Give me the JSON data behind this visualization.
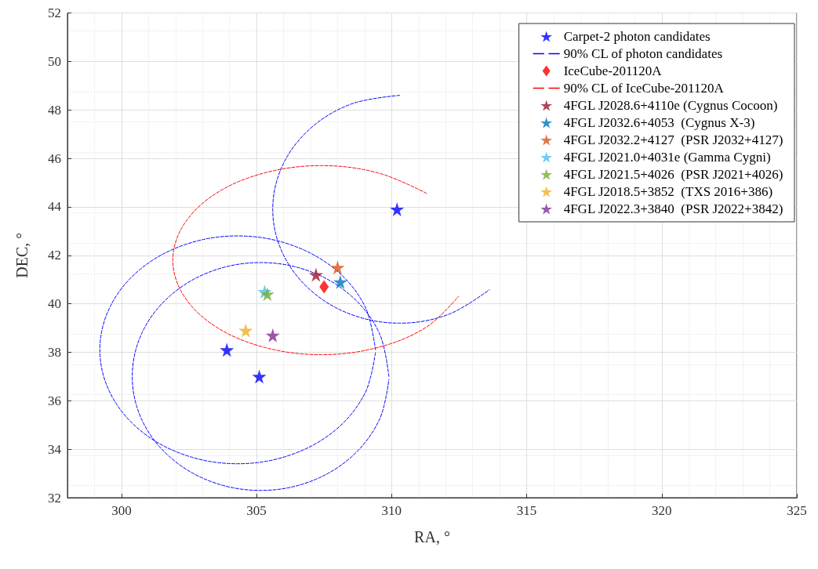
{
  "chart_data": {
    "type": "scatter",
    "xlabel": "RA, °",
    "ylabel": "DEC, °",
    "xlim": [
      298,
      325
    ],
    "xticks": [
      300,
      305,
      310,
      315,
      320,
      325
    ],
    "ylim": [
      32,
      52
    ],
    "yticks": [
      32,
      34,
      36,
      38,
      40,
      42,
      44,
      46,
      48,
      50,
      52
    ],
    "grid": true,
    "legend": "top right",
    "series": [
      {
        "name": "Carpet-2 photon candidates",
        "marker": "star",
        "color": "#0000ff",
        "x": [
          310.2,
          303.9,
          305.1
        ],
        "values": [
          43.9,
          38.1,
          37.0
        ]
      },
      {
        "name": "90% CL of photon candidates",
        "type": "line",
        "marker": "none",
        "line_style": "dashed",
        "color": "#0000ff",
        "x": [
          310.3,
          308.5,
          306.98,
          305.96,
          305.6,
          305.96,
          306.98,
          308.5,
          310.3,
          312.1,
          313.62
        ],
        "values": [
          48.6,
          48.24,
          47.22,
          45.7,
          43.9,
          42.1,
          40.58,
          39.56,
          39.2,
          39.56,
          40.58
        ]
      },
      {
        "type": "line",
        "marker": "none",
        "line_style": "dashed",
        "color": "#0000ff",
        "x": [
          309.4,
          309.01,
          307.91,
          306.25,
          304.3,
          302.35,
          300.69,
          299.59,
          299.2,
          299.59,
          300.69,
          302.35,
          304.3,
          306.25,
          307.91,
          309.01,
          309.4
        ],
        "values": [
          38.1,
          39.9,
          41.42,
          42.44,
          42.8,
          42.44,
          41.42,
          39.9,
          38.1,
          36.3,
          34.78,
          33.76,
          33.4,
          33.76,
          34.78,
          36.3,
          37.98
        ]
      },
      {
        "type": "line",
        "marker": "none",
        "line_style": "dashed",
        "color": "#0000ff",
        "x": [
          309.9,
          309.54,
          308.51,
          306.97,
          305.15,
          303.33,
          301.79,
          300.76,
          300.4,
          300.76,
          301.79,
          303.33,
          305.15,
          306.97,
          308.51,
          309.54,
          309.9
        ],
        "values": [
          37.0,
          38.8,
          40.32,
          41.34,
          41.7,
          41.34,
          40.32,
          38.8,
          37.0,
          35.2,
          33.68,
          32.66,
          32.3,
          32.66,
          33.68,
          35.2,
          36.88
        ]
      },
      {
        "name": "IceCube-201120A",
        "marker": "diamond",
        "color": "#ff0000",
        "x": [
          307.5
        ],
        "values": [
          40.7
        ]
      },
      {
        "name": "90% CL of IceCube-201120A",
        "type": "line",
        "marker": "none",
        "line_style": "dashed",
        "color": "#ff0000",
        "x": [
          311.29,
          309.5,
          307.4,
          305.3,
          303.51,
          302.32,
          301.9,
          302.32,
          303.51,
          305.3,
          307.4,
          309.5,
          311.29,
          312.48
        ],
        "values": [
          44.56,
          45.4,
          45.7,
          45.4,
          44.56,
          43.29,
          41.8,
          40.31,
          39.04,
          38.2,
          37.9,
          38.2,
          39.04,
          40.31
        ]
      },
      {
        "name": "4FGL J2028.6+4110e (Cygnus Cocoon)",
        "marker": "star",
        "color": "#a2142f",
        "x": [
          307.2
        ],
        "values": [
          41.2
        ]
      },
      {
        "name": "4FGL J2032.6+4053  (Cygnus X-3)",
        "marker": "star",
        "color": "#0072bd",
        "x": [
          308.1
        ],
        "values": [
          40.9
        ]
      },
      {
        "name": "4FGL J2032.2+4127  (PSR J2032+4127)",
        "marker": "star",
        "color": "#d95319",
        "x": [
          308.0
        ],
        "values": [
          41.5
        ]
      },
      {
        "name": "4FGL J2021.0+4031e (Gamma Cygni)",
        "marker": "star",
        "color": "#4dbeee",
        "x": [
          305.3
        ],
        "values": [
          40.5
        ]
      },
      {
        "name": "4FGL J2021.5+4026  (PSR J2021+4026)",
        "marker": "star",
        "color": "#77ac30",
        "x": [
          305.4
        ],
        "values": [
          40.4
        ]
      },
      {
        "name": "4FGL J2018.5+3852  (TXS 2016+386)",
        "marker": "star",
        "color": "#edb120",
        "x": [
          304.6
        ],
        "values": [
          38.9
        ]
      },
      {
        "name": "4FGL J2022.3+3840  (PSR J2022+3842)",
        "marker": "star",
        "color": "#7e2f8e",
        "x": [
          305.6
        ],
        "values": [
          38.7
        ]
      }
    ]
  }
}
